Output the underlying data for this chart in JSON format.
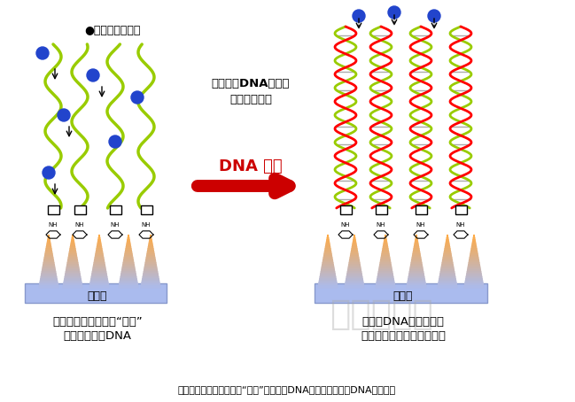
{
  "title": "",
  "caption": "通过固定在导电性金刚石“刀山”上的探头DNA、高灵敏度检测DNA的原理图",
  "left_label_line1": "固定在导电性金刚石“刀山”",
  "left_label_line2": "上的单链探头DNA",
  "right_label_line1": "当探头DNA成为双链，",
  "right_label_line2": "则间隙变窄，离子电流减少",
  "diamond_label": "金刚石",
  "arrow_text_line1": "检测到的DNA（红）",
  "arrow_text_line2": "结合形成双链",
  "arrow_label": "DNA 检测",
  "ion_label": "●输送电流的离子",
  "bg_color": "#ffffff",
  "left_wave_color": "#99cc00",
  "right_wave1_color": "#ff0000",
  "right_wave2_color": "#99cc00",
  "ion_color": "#2244cc",
  "diamond_base_color": "#aabbee",
  "spike_color_top": "#ffaa44",
  "spike_color_bottom": "#aabbee",
  "arrow_color": "#cc0000",
  "watermark_color": "#aaaaaa"
}
